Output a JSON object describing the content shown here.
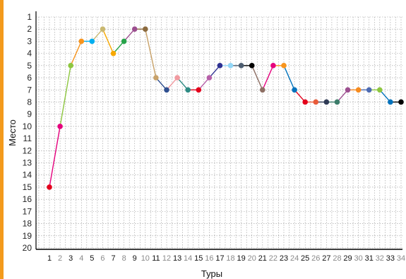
{
  "colors": {
    "accent": "#f39a1c",
    "background": "#ffffff",
    "grid": "#999999",
    "axis": "#000000",
    "tick_label_odd": "#111111",
    "tick_label_even": "#8a8a8a"
  },
  "chart_data": {
    "type": "line",
    "title": "",
    "xlabel": "Туры",
    "ylabel": "Место",
    "x": [
      1,
      2,
      3,
      4,
      5,
      6,
      7,
      8,
      9,
      10,
      11,
      12,
      13,
      14,
      15,
      16,
      17,
      18,
      19,
      20,
      21,
      22,
      23,
      24,
      25,
      26,
      27,
      28,
      29,
      30,
      31,
      32,
      33,
      34
    ],
    "x_tick_labels": [
      "1",
      "2",
      "3",
      "4",
      "5",
      "6",
      "7",
      "8",
      "9",
      "10",
      "11",
      "12",
      "13",
      "14",
      "15",
      "16",
      "17",
      "18",
      "19",
      "20",
      "21",
      "22",
      "23",
      "24",
      "25",
      "26",
      "27",
      "28",
      "29",
      "30",
      "31",
      "32",
      "33",
      "34"
    ],
    "xlim": [
      1,
      34
    ],
    "y_tick_labels": [
      "1",
      "2",
      "3",
      "4",
      "5",
      "6",
      "7",
      "8",
      "9",
      "10",
      "11",
      "12",
      "13",
      "14",
      "15",
      "16",
      "17",
      "18",
      "19",
      "20"
    ],
    "ylim": [
      20,
      1
    ],
    "y_inverted": true,
    "grid": true,
    "series": [
      {
        "values": [
          15,
          10,
          5,
          3,
          3,
          2,
          4,
          3,
          2,
          2,
          6,
          7,
          6,
          7,
          7,
          6,
          5,
          5,
          5,
          5,
          7,
          5,
          5,
          7,
          8,
          8,
          8,
          8,
          7,
          7,
          7,
          7,
          8,
          8
        ],
        "point_colors": [
          "#e3001b",
          "#e5007d",
          "#8dc63f",
          "#f7941d",
          "#00aeef",
          "#c9b870",
          "#f7a800",
          "#27a34a",
          "#9c4e8f",
          "#8b6a3e",
          "#c8a26a",
          "#2f4f8f",
          "#f19aa0",
          "#2e8b84",
          "#e3001b",
          "#b65fa8",
          "#2e3192",
          "#92d7f7",
          "#4d5d70",
          "#000000",
          "#8d6e63",
          "#e5007d",
          "#f7941d",
          "#0072bc",
          "#e3001b",
          "#e85b3a",
          "#2f3a55",
          "#3c7d6a",
          "#9c4e8f",
          "#f68b1f",
          "#4d6bb3",
          "#8dc63f",
          "#0072bc",
          "#000000"
        ]
      }
    ]
  }
}
